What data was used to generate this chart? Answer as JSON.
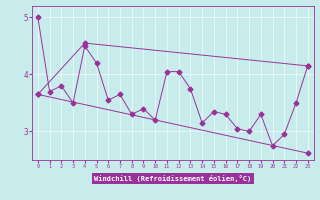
{
  "xlabel": "Windchill (Refroidissement éolien,°C)",
  "background_color": "#c8ecec",
  "line_color": "#993399",
  "xlabel_bg": "#993399",
  "xlim": [
    -0.5,
    23.5
  ],
  "ylim": [
    2.5,
    5.2
  ],
  "yticks": [
    3,
    4,
    5
  ],
  "xticks": [
    0,
    1,
    2,
    3,
    4,
    5,
    6,
    7,
    8,
    9,
    10,
    11,
    12,
    13,
    14,
    15,
    16,
    17,
    18,
    19,
    20,
    21,
    22,
    23
  ],
  "series1": [
    5.0,
    3.7,
    3.8,
    3.5,
    4.5,
    4.2,
    3.55,
    3.65,
    3.3,
    3.4,
    3.2,
    4.05,
    4.05,
    3.75,
    3.15,
    3.35,
    3.3,
    3.05,
    3.0,
    3.3,
    2.75,
    2.95,
    3.5,
    4.15
  ],
  "series2_x": [
    0,
    4,
    23
  ],
  "series2_y": [
    3.65,
    4.55,
    4.15
  ],
  "series3_x": [
    0,
    23
  ],
  "series3_y": [
    3.65,
    2.62
  ]
}
